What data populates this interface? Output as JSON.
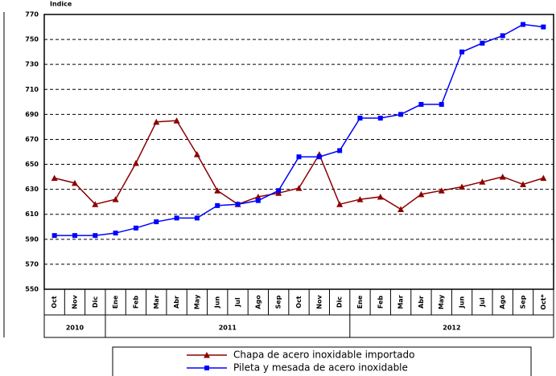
{
  "chart_data": {
    "type": "line",
    "y_label": "Indice",
    "categories": [
      "Oct",
      "Nov",
      "Dic",
      "Ene",
      "Feb",
      "Mar",
      "Abr",
      "May",
      "Jun",
      "Jul",
      "Ago",
      "Sep",
      "Oct",
      "Nov",
      "Dic",
      "Ene",
      "Feb",
      "Mar",
      "Abr",
      "May",
      "Jun",
      "Jul",
      "Ago",
      "Sep",
      "Oct*"
    ],
    "groups": [
      {
        "label": "2010",
        "start": 0,
        "end": 2
      },
      {
        "label": "2011",
        "start": 3,
        "end": 14
      },
      {
        "label": "2012",
        "start": 15,
        "end": 24
      }
    ],
    "series": [
      {
        "name": "Chapa de acero inoxidable importado",
        "color": "#8b0000",
        "marker": "triangle",
        "values": [
          639,
          635,
          618,
          622,
          651,
          684,
          685,
          658,
          629,
          618,
          624,
          627,
          631,
          658,
          618,
          622,
          624,
          614,
          626,
          629,
          632,
          636,
          640,
          634,
          639
        ]
      },
      {
        "name": "Pileta y mesada de acero inoxidable",
        "color": "#0000ff",
        "marker": "square",
        "values": [
          593,
          593,
          593,
          595,
          599,
          604,
          607,
          607,
          617,
          618,
          621,
          629,
          656,
          656,
          661,
          687,
          687,
          690,
          698,
          698,
          740,
          747,
          753,
          762,
          760
        ]
      }
    ],
    "ylim": [
      550,
      770
    ],
    "yticks": [
      550,
      570,
      590,
      610,
      630,
      650,
      670,
      690,
      710,
      730,
      750,
      770
    ],
    "grid": true
  }
}
